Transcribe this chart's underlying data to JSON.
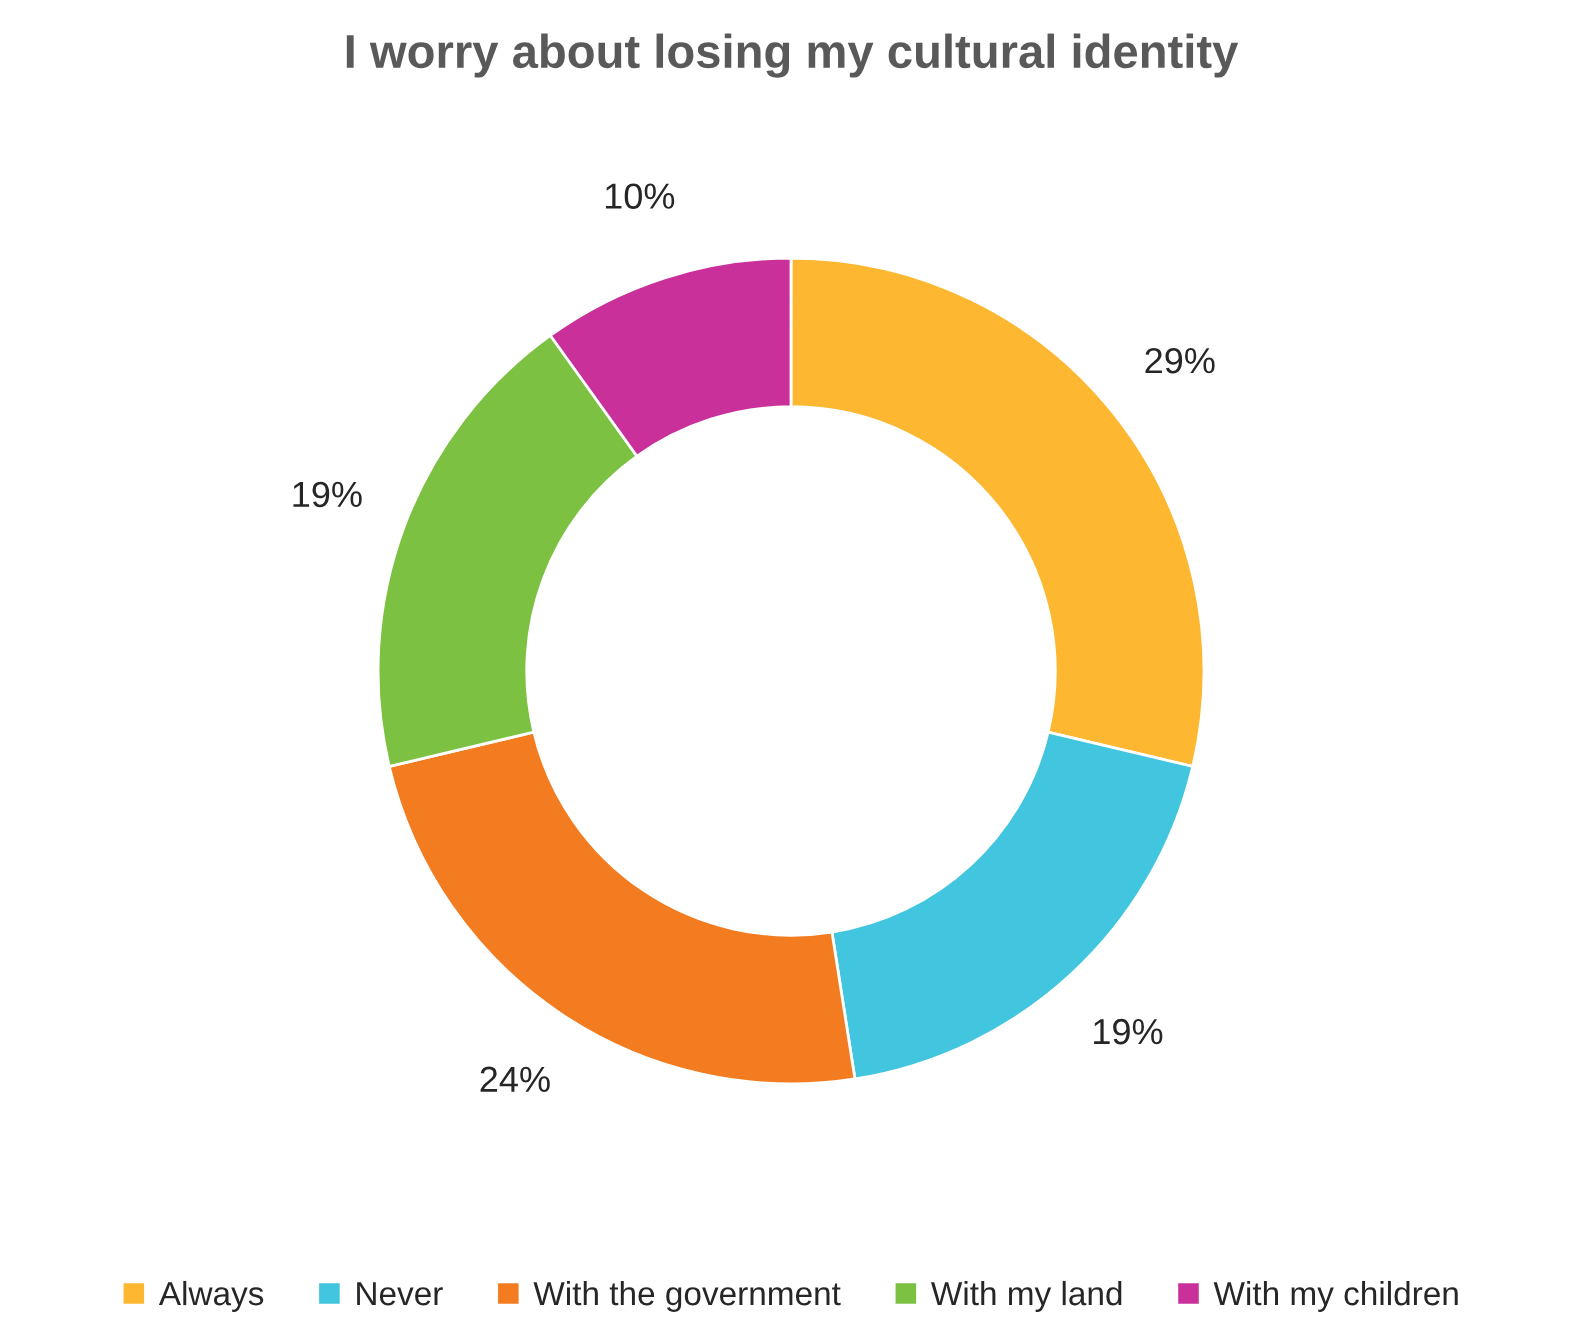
{
  "chart_data": {
    "type": "donut",
    "title": "I worry about losing my cultural identity",
    "categories": [
      "Always",
      "Never",
      "With the government",
      "With my land",
      "With my children"
    ],
    "values": [
      29,
      19,
      24,
      19,
      10
    ],
    "value_labels": [
      "29%",
      "19%",
      "24%",
      "19%",
      "10%"
    ],
    "colors": [
      "#fdb730",
      "#42c5de",
      "#f47c20",
      "#7cc142",
      "#c9309a"
    ],
    "legend": "bottom"
  }
}
